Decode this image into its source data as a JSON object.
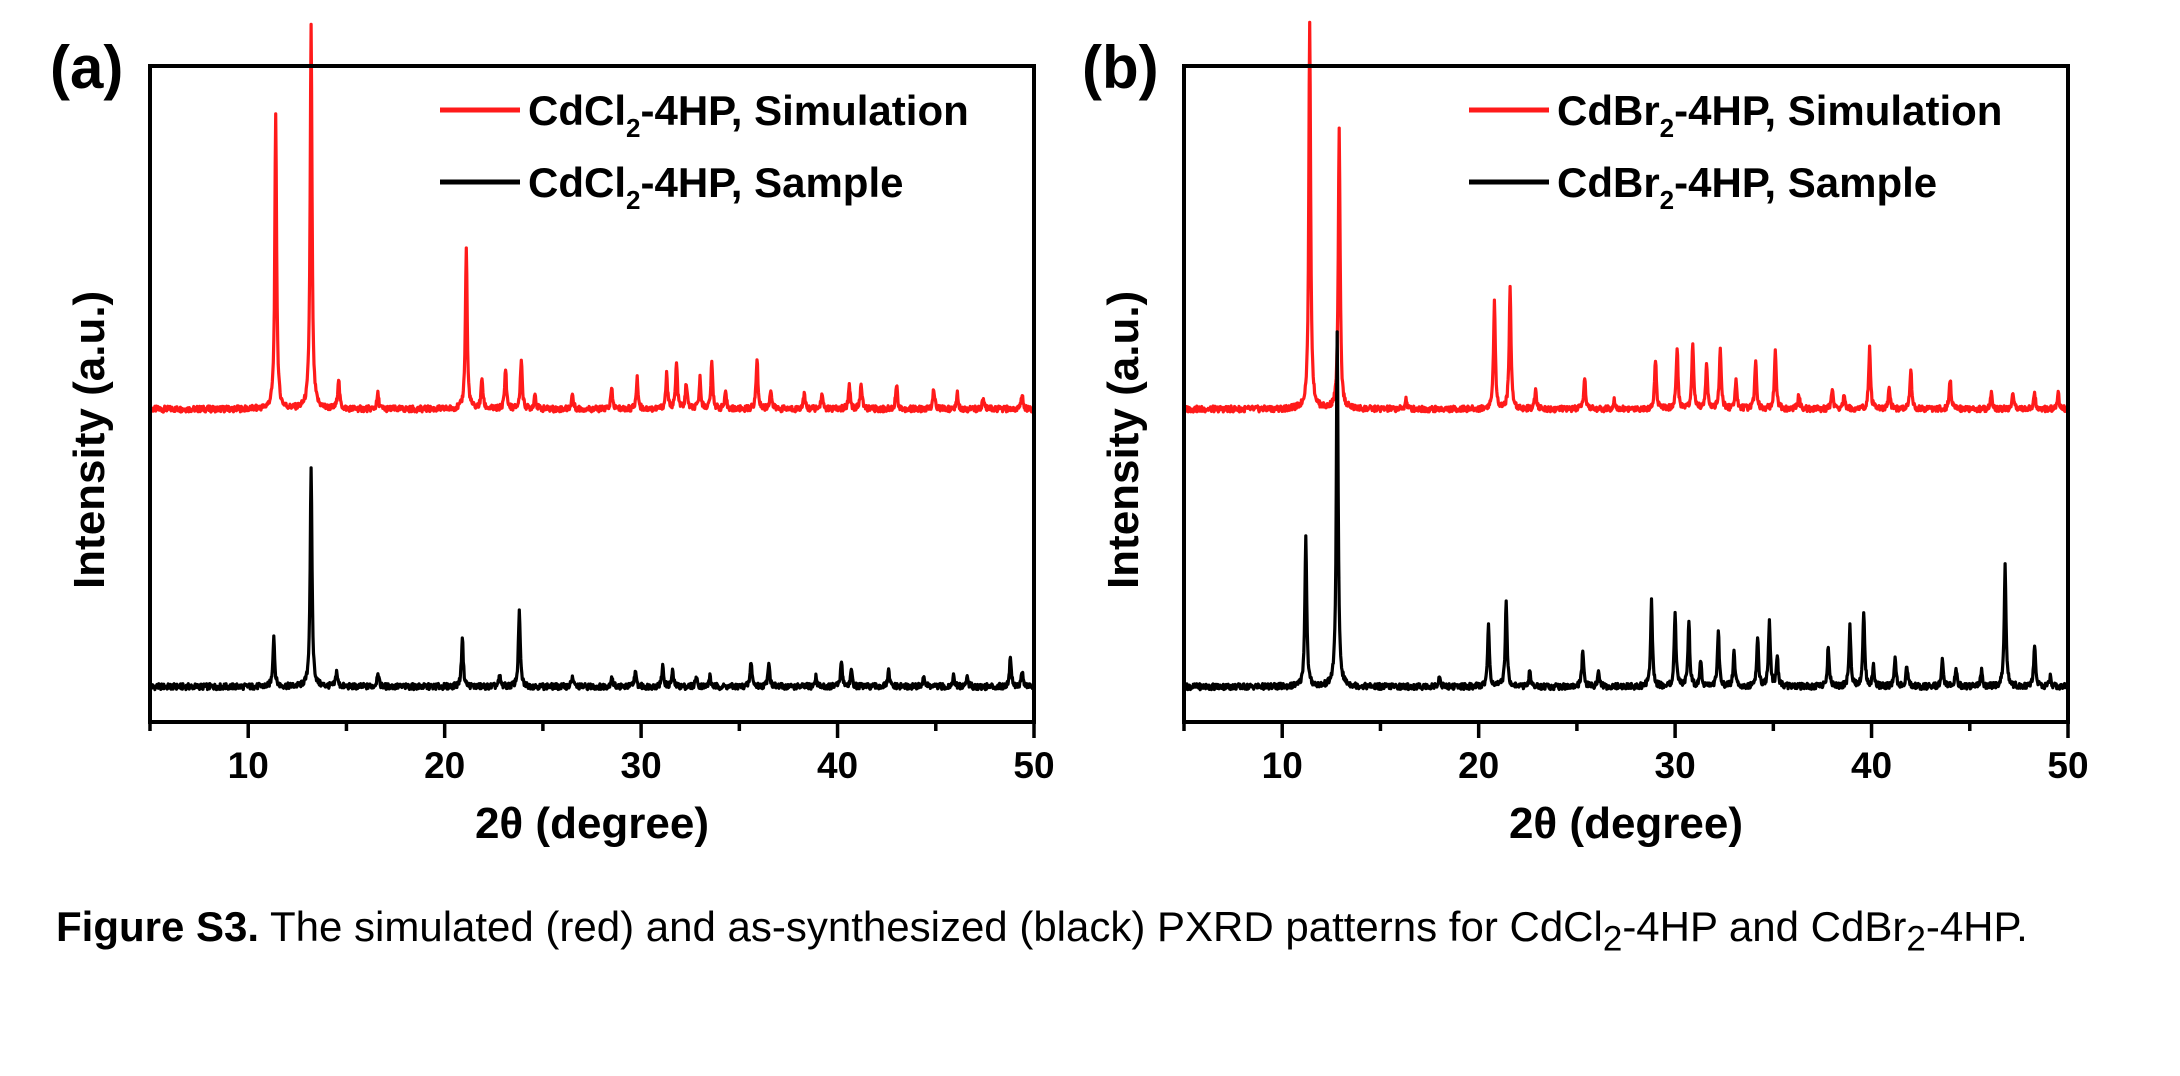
{
  "chart_data": [
    {
      "type": "line",
      "panel_label": "(a)",
      "xlabel": "2θ (degree)",
      "ylabel": "Intensity (a.u.)",
      "xlim": [
        5,
        50
      ],
      "ylim": [
        0,
        1.3
      ],
      "xticks": [
        10,
        20,
        30,
        40,
        50
      ],
      "y_ticks_labeled": false,
      "grid": false,
      "legend_position": "top-right",
      "series": [
        {
          "label_main": "CdCl",
          "label_sub": "2",
          "label_rest": "-4HP, Simulation",
          "color": "#ff1a1a",
          "baseline": 0.62,
          "peaks": [
            [
              11.4,
              0.58
            ],
            [
              13.2,
              0.76
            ],
            [
              14.6,
              0.06
            ],
            [
              16.6,
              0.03
            ],
            [
              21.1,
              0.32
            ],
            [
              21.9,
              0.06
            ],
            [
              23.1,
              0.08
            ],
            [
              23.9,
              0.1
            ],
            [
              24.6,
              0.03
            ],
            [
              26.5,
              0.03
            ],
            [
              28.5,
              0.04
            ],
            [
              29.8,
              0.06
            ],
            [
              31.3,
              0.07
            ],
            [
              31.8,
              0.09
            ],
            [
              32.3,
              0.05
            ],
            [
              33.0,
              0.06
            ],
            [
              33.6,
              0.09
            ],
            [
              34.3,
              0.03
            ],
            [
              35.9,
              0.1
            ],
            [
              36.6,
              0.04
            ],
            [
              38.3,
              0.03
            ],
            [
              39.2,
              0.03
            ],
            [
              40.6,
              0.05
            ],
            [
              41.2,
              0.05
            ],
            [
              43.0,
              0.05
            ],
            [
              44.9,
              0.04
            ],
            [
              46.1,
              0.03
            ],
            [
              47.4,
              0.02
            ],
            [
              49.4,
              0.03
            ]
          ]
        },
        {
          "label_main": "CdCl",
          "label_sub": "2",
          "label_rest": "-4HP, Sample",
          "color": "#000000",
          "baseline": 0.07,
          "peaks": [
            [
              11.3,
              0.1
            ],
            [
              13.2,
              0.43
            ],
            [
              14.5,
              0.03
            ],
            [
              16.6,
              0.03
            ],
            [
              20.9,
              0.1
            ],
            [
              22.8,
              0.02
            ],
            [
              23.8,
              0.15
            ],
            [
              26.5,
              0.02
            ],
            [
              28.5,
              0.02
            ],
            [
              29.7,
              0.03
            ],
            [
              31.1,
              0.04
            ],
            [
              31.6,
              0.03
            ],
            [
              32.8,
              0.02
            ],
            [
              33.5,
              0.02
            ],
            [
              35.6,
              0.05
            ],
            [
              36.5,
              0.05
            ],
            [
              38.9,
              0.02
            ],
            [
              40.2,
              0.05
            ],
            [
              40.7,
              0.03
            ],
            [
              42.6,
              0.03
            ],
            [
              44.4,
              0.02
            ],
            [
              45.9,
              0.02
            ],
            [
              46.6,
              0.02
            ],
            [
              48.8,
              0.06
            ],
            [
              49.4,
              0.03
            ]
          ]
        }
      ]
    },
    {
      "type": "line",
      "panel_label": "(b)",
      "xlabel": "2θ (degree)",
      "ylabel": "Intensity (a.u.)",
      "xlim": [
        5,
        50
      ],
      "ylim": [
        0,
        1.3
      ],
      "xticks": [
        10,
        20,
        30,
        40,
        50
      ],
      "y_ticks_labeled": false,
      "grid": false,
      "legend_position": "top-right",
      "series": [
        {
          "label_main": "CdBr",
          "label_sub": "2",
          "label_rest": "-4HP, Simulation",
          "color": "#ff1a1a",
          "baseline": 0.62,
          "peaks": [
            [
              11.4,
              0.77
            ],
            [
              12.9,
              0.55
            ],
            [
              16.3,
              0.02
            ],
            [
              20.8,
              0.21
            ],
            [
              21.6,
              0.24
            ],
            [
              22.9,
              0.04
            ],
            [
              25.4,
              0.06
            ],
            [
              26.9,
              0.02
            ],
            [
              29.0,
              0.1
            ],
            [
              30.1,
              0.12
            ],
            [
              30.9,
              0.13
            ],
            [
              31.6,
              0.09
            ],
            [
              32.3,
              0.12
            ],
            [
              33.1,
              0.06
            ],
            [
              34.1,
              0.1
            ],
            [
              35.1,
              0.12
            ],
            [
              36.3,
              0.03
            ],
            [
              38.0,
              0.04
            ],
            [
              38.6,
              0.03
            ],
            [
              39.9,
              0.12
            ],
            [
              40.9,
              0.04
            ],
            [
              42.0,
              0.08
            ],
            [
              44.0,
              0.06
            ],
            [
              46.1,
              0.03
            ],
            [
              47.2,
              0.03
            ],
            [
              48.3,
              0.03
            ],
            [
              49.5,
              0.03
            ]
          ]
        },
        {
          "label_main": "CdBr",
          "label_sub": "2",
          "label_rest": "-4HP, Sample",
          "color": "#000000",
          "baseline": 0.07,
          "peaks": [
            [
              11.2,
              0.3
            ],
            [
              12.8,
              0.7
            ],
            [
              18.0,
              0.02
            ],
            [
              20.5,
              0.12
            ],
            [
              21.4,
              0.17
            ],
            [
              22.6,
              0.03
            ],
            [
              25.3,
              0.07
            ],
            [
              26.1,
              0.03
            ],
            [
              28.8,
              0.17
            ],
            [
              30.0,
              0.14
            ],
            [
              30.7,
              0.13
            ],
            [
              31.3,
              0.05
            ],
            [
              32.2,
              0.11
            ],
            [
              33.0,
              0.07
            ],
            [
              34.2,
              0.1
            ],
            [
              34.8,
              0.13
            ],
            [
              35.2,
              0.06
            ],
            [
              37.8,
              0.08
            ],
            [
              38.9,
              0.12
            ],
            [
              39.6,
              0.15
            ],
            [
              40.1,
              0.04
            ],
            [
              41.2,
              0.06
            ],
            [
              41.8,
              0.04
            ],
            [
              43.6,
              0.05
            ],
            [
              44.3,
              0.04
            ],
            [
              45.6,
              0.03
            ],
            [
              46.8,
              0.24
            ],
            [
              48.3,
              0.08
            ],
            [
              49.1,
              0.02
            ]
          ]
        }
      ]
    }
  ],
  "caption": {
    "label": "Figure S3.",
    "text_part1": " The simulated (red) and as-synthesized (black) PXRD patterns for CdCl",
    "sub1": "2",
    "text_part2": "-4HP and CdBr",
    "sub2": "2",
    "text_part3": "-4HP."
  }
}
